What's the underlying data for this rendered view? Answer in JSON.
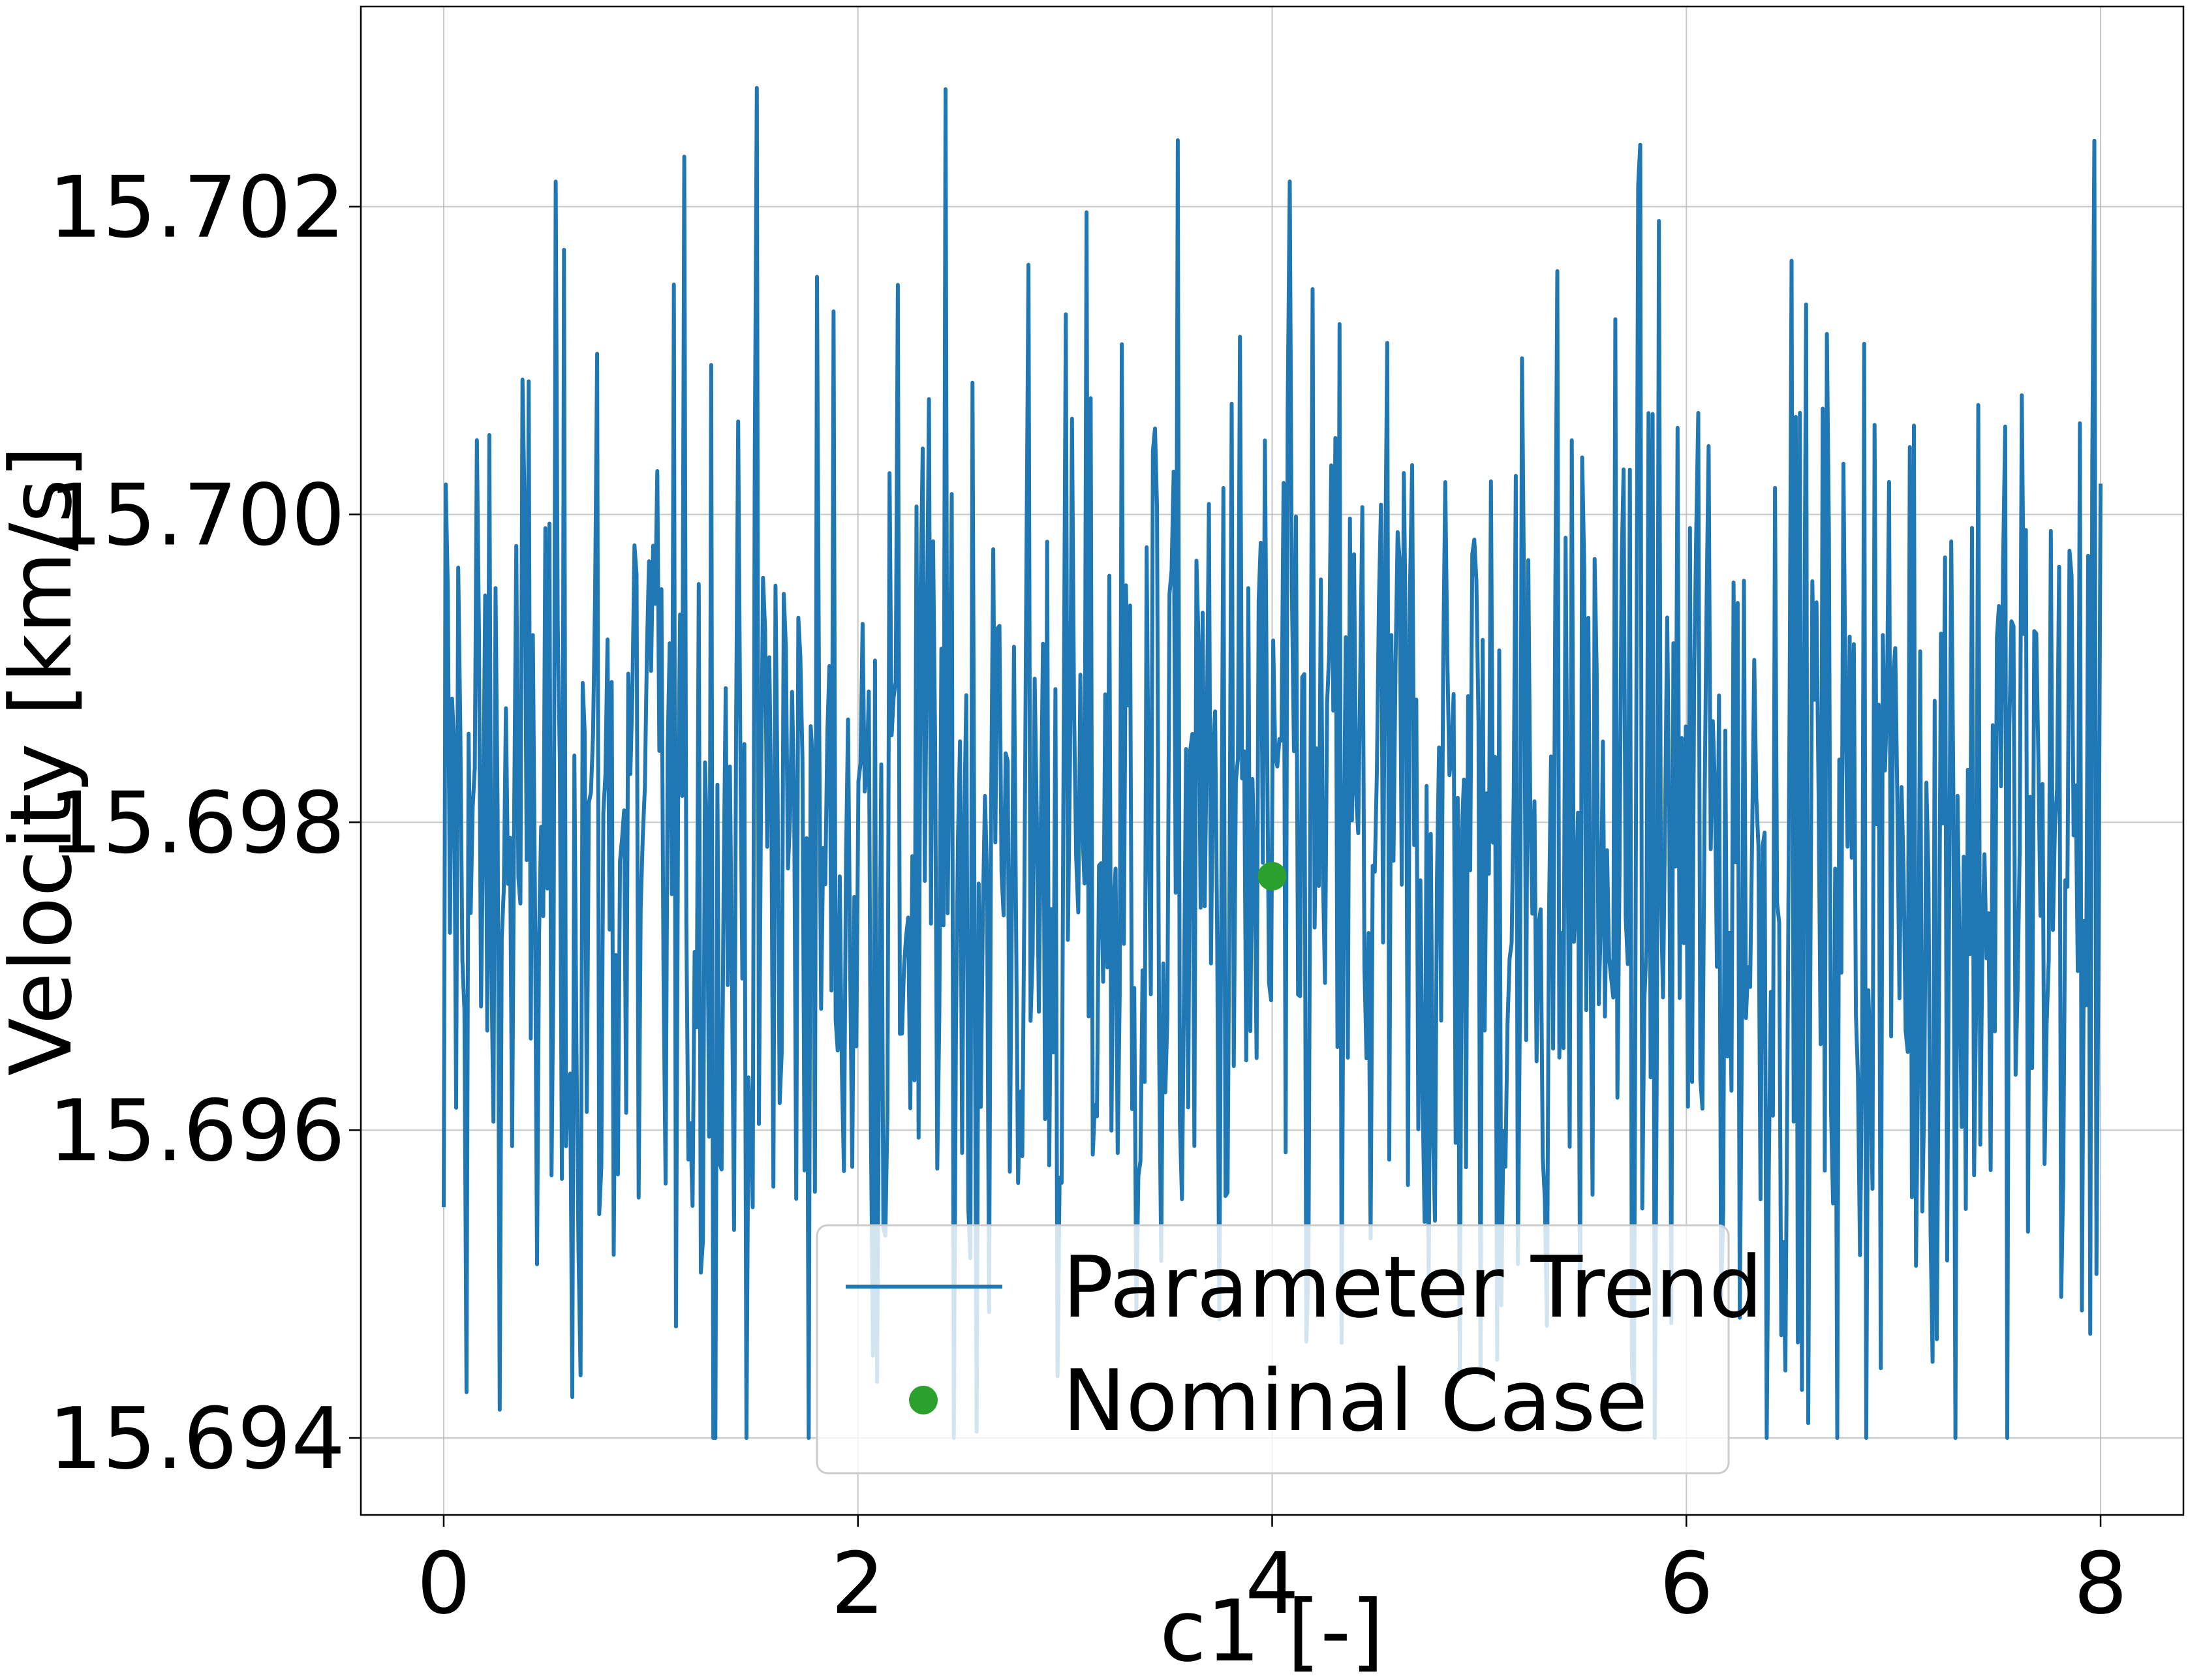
{
  "chart_data": {
    "type": "line",
    "xlabel": "c1 [-]",
    "ylabel": "Velocity [km/s]",
    "xlim": [
      -0.4,
      8.4
    ],
    "ylim": [
      15.6935,
      15.7033
    ],
    "xticks": [
      0,
      2,
      4,
      6,
      8
    ],
    "xtick_labels": [
      "0",
      "2",
      "4",
      "6",
      "8"
    ],
    "yticks": [
      15.694,
      15.696,
      15.698,
      15.7,
      15.702
    ],
    "ytick_labels": [
      "15.694",
      "15.696",
      "15.698",
      "15.700",
      "15.702"
    ],
    "grid": true,
    "legend": {
      "location": "lower center",
      "entries": [
        "Parameter Trend",
        "Nominal Case"
      ]
    },
    "series": [
      {
        "name": "Parameter Trend",
        "kind": "line",
        "color": "#1f77b4",
        "x_range": [
          0,
          8
        ],
        "n_points": 800,
        "y_min": 15.694,
        "y_max": 15.7028,
        "y_center": 15.6978,
        "y_spread": 0.0018,
        "start_y": 15.6955,
        "end_y": 15.7002
      },
      {
        "name": "Nominal Case",
        "kind": "point",
        "color": "#2ca02c",
        "x": 4.0,
        "y": 15.69765
      }
    ]
  }
}
